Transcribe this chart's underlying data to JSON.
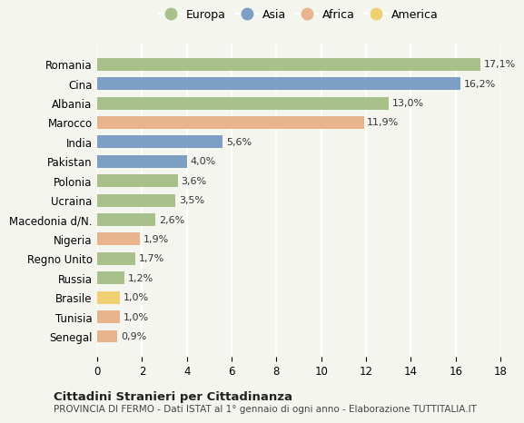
{
  "categories": [
    "Romania",
    "Cina",
    "Albania",
    "Marocco",
    "India",
    "Pakistan",
    "Polonia",
    "Ucraina",
    "Macedonia d/N.",
    "Nigeria",
    "Regno Unito",
    "Russia",
    "Brasile",
    "Tunisia",
    "Senegal"
  ],
  "values": [
    17.1,
    16.2,
    13.0,
    11.9,
    5.6,
    4.0,
    3.6,
    3.5,
    2.6,
    1.9,
    1.7,
    1.2,
    1.0,
    1.0,
    0.9
  ],
  "continents": [
    "Europa",
    "Asia",
    "Europa",
    "Africa",
    "Asia",
    "Asia",
    "Europa",
    "Europa",
    "Europa",
    "Africa",
    "Europa",
    "Europa",
    "America",
    "Africa",
    "Africa"
  ],
  "colors": {
    "Europa": "#a8c08a",
    "Asia": "#7e9fc4",
    "Africa": "#e8b48e",
    "America": "#f0d070"
  },
  "legend_order": [
    "Europa",
    "Asia",
    "Africa",
    "America"
  ],
  "xlim": [
    0,
    18
  ],
  "xticks": [
    0,
    2,
    4,
    6,
    8,
    10,
    12,
    14,
    16,
    18
  ],
  "title": "Cittadini Stranieri per Cittadinanza",
  "subtitle": "PROVINCIA DI FERMO - Dati ISTAT al 1° gennaio di ogni anno - Elaborazione TUTTITALIA.IT",
  "bg_color": "#f5f5f0"
}
